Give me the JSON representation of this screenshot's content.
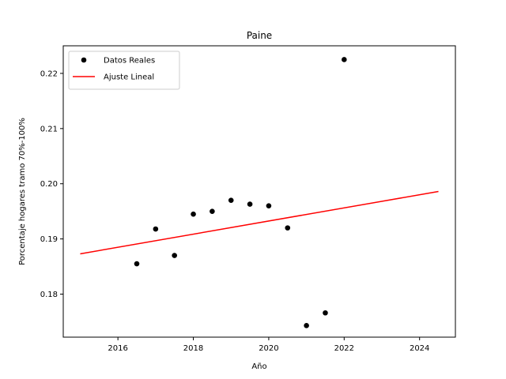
{
  "chart_data": {
    "type": "scatter",
    "title": "Paine",
    "xlabel": "Año",
    "ylabel": "Porcentaje hogares tramo 70%-100%",
    "xlim": [
      2014.55,
      2024.95
    ],
    "ylim": [
      0.1722,
      0.225
    ],
    "xticks": [
      2016,
      2018,
      2020,
      2022,
      2024
    ],
    "yticks": [
      0.18,
      0.19,
      0.2,
      0.21,
      0.22
    ],
    "grid": false,
    "legend_position": "top-left",
    "series": [
      {
        "name": "Datos Reales",
        "kind": "scatter",
        "color": "#000000",
        "points": [
          {
            "x": 2016.5,
            "y": 0.1855
          },
          {
            "x": 2017.0,
            "y": 0.1918
          },
          {
            "x": 2017.5,
            "y": 0.187
          },
          {
            "x": 2018.0,
            "y": 0.1945
          },
          {
            "x": 2018.5,
            "y": 0.195
          },
          {
            "x": 2019.0,
            "y": 0.197
          },
          {
            "x": 2019.5,
            "y": 0.1963
          },
          {
            "x": 2020.0,
            "y": 0.196
          },
          {
            "x": 2020.5,
            "y": 0.192
          },
          {
            "x": 2021.0,
            "y": 0.1743
          },
          {
            "x": 2021.5,
            "y": 0.1766
          },
          {
            "x": 2022.0,
            "y": 0.2225
          }
        ]
      },
      {
        "name": "Ajuste Lineal",
        "kind": "line",
        "color": "#ff0000",
        "points": [
          {
            "x": 2015.0,
            "y": 0.1873
          },
          {
            "x": 2024.5,
            "y": 0.1986
          }
        ]
      }
    ]
  }
}
